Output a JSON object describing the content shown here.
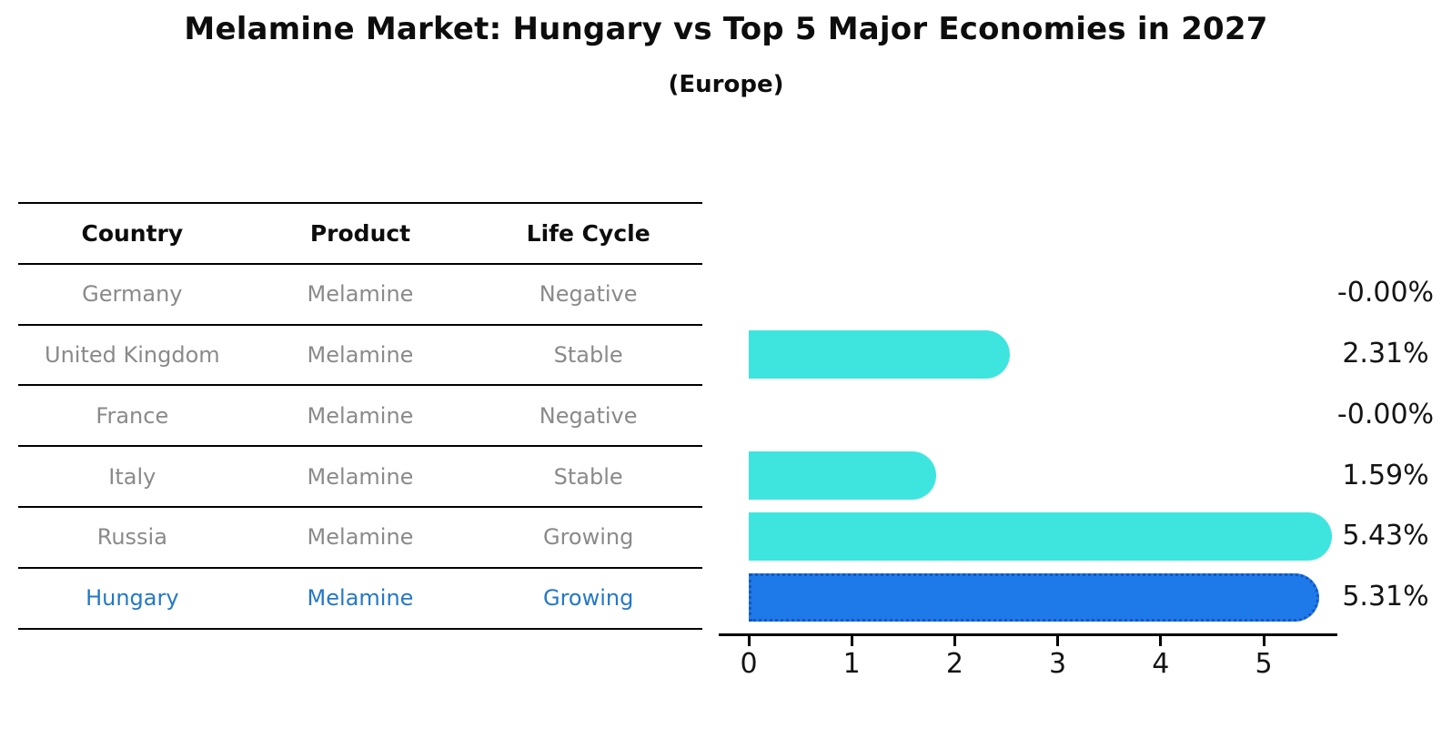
{
  "title": "Melamine Market: Hungary vs Top 5 Major Economies in 2027",
  "subtitle": "(Europe)",
  "table": {
    "headers": [
      "Country",
      "Product",
      "Life Cycle"
    ],
    "rows": [
      {
        "country": "Germany",
        "product": "Melamine",
        "life_cycle": "Negative",
        "highlighted": false
      },
      {
        "country": "United Kingdom",
        "product": "Melamine",
        "life_cycle": "Stable",
        "highlighted": false
      },
      {
        "country": "France",
        "product": "Melamine",
        "life_cycle": "Negative",
        "highlighted": false
      },
      {
        "country": "Italy",
        "product": "Melamine",
        "life_cycle": "Stable",
        "highlighted": false
      },
      {
        "country": "Russia",
        "product": "Melamine",
        "life_cycle": "Growing",
        "highlighted": false
      },
      {
        "country": "Hungary",
        "product": "Melamine",
        "life_cycle": "Growing",
        "highlighted": true
      }
    ]
  },
  "chart_data": {
    "type": "bar",
    "orientation": "horizontal",
    "title": "Melamine Market: Hungary vs Top 5 Major Economies in 2027 (Europe)",
    "categories": [
      "Germany",
      "United Kingdom",
      "France",
      "Italy",
      "Russia",
      "Hungary"
    ],
    "values": [
      -0.0,
      2.31,
      -0.0,
      1.59,
      5.43,
      5.31
    ],
    "value_labels": [
      "-0.00%",
      "2.31%",
      "-0.00%",
      "1.59%",
      "5.43%",
      "5.31%"
    ],
    "unit": "percent",
    "xlabel": "",
    "ylabel": "",
    "xlim": [
      0,
      5.75
    ],
    "x_ticks": [
      0,
      1,
      2,
      3,
      4,
      5
    ],
    "grid": false,
    "legend": "none",
    "highlight_category": "Hungary",
    "colors": {
      "bar_default": "#3ee5de",
      "bar_highlight": "#1f7ae9",
      "highlight_border": "#1456c8",
      "table_text": "#8a8a8a",
      "highlight_text": "#2478c8",
      "label_text": "#141414"
    }
  }
}
